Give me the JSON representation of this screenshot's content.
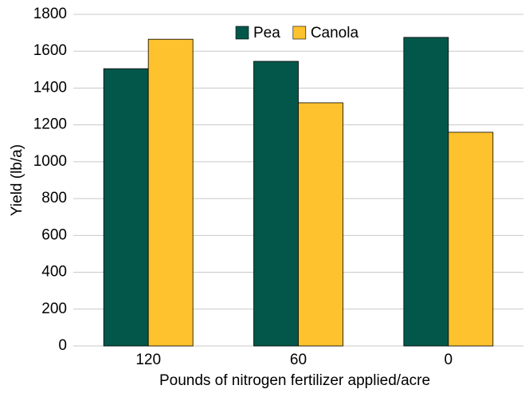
{
  "chart_data": {
    "type": "bar",
    "x_label": "Pounds of nitrogen fertilizer applied/acre",
    "y_label": "Yield (lb/a)",
    "categories": [
      "120",
      "60",
      "0"
    ],
    "series": [
      {
        "name": "Pea",
        "color": "#03574a",
        "values": [
          1505,
          1545,
          1675
        ]
      },
      {
        "name": "Canola",
        "color": "#fdc22d",
        "values": [
          1665,
          1320,
          1160
        ]
      }
    ],
    "ylim": [
      0,
      1800
    ],
    "yticks": [
      0,
      200,
      400,
      600,
      800,
      1000,
      1200,
      1400,
      1600,
      1800
    ],
    "grid": true,
    "legend": "top"
  }
}
